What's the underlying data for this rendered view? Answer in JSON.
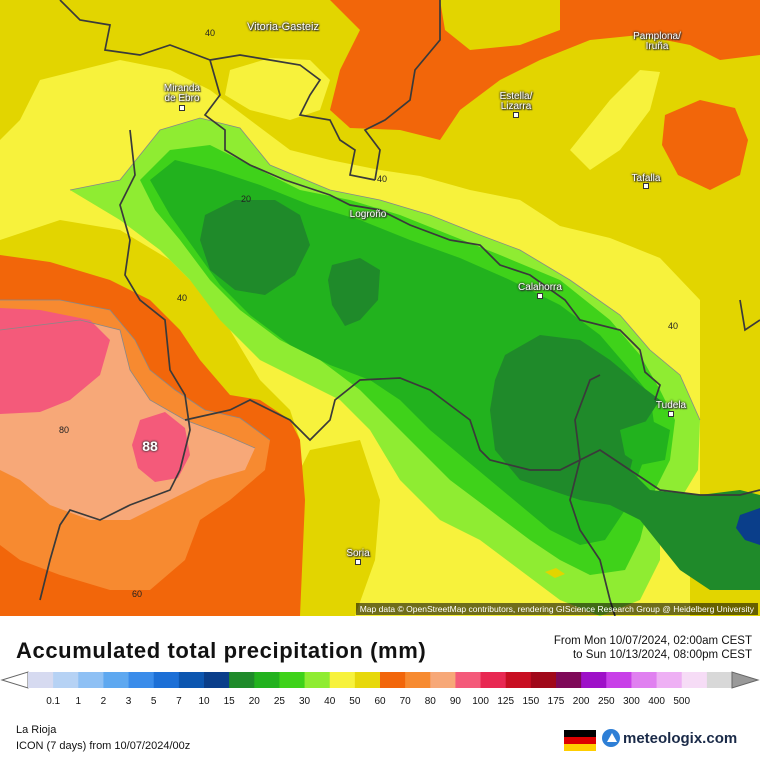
{
  "map": {
    "cities": [
      {
        "id": "vitoria-gasteiz",
        "name": "Vitoria-Gasteiz"
      },
      {
        "id": "pamplona-iruna",
        "name": "Pamplona/\nIruña"
      },
      {
        "id": "miranda-de-ebro",
        "name": "Miranda\nde Ebro"
      },
      {
        "id": "estella-lizarra",
        "name": "Estella/\nLizarra"
      },
      {
        "id": "tafalla",
        "name": "Tafalla"
      },
      {
        "id": "logrono",
        "name": "Logroño"
      },
      {
        "id": "calahorra",
        "name": "Calahorra"
      },
      {
        "id": "tudela",
        "name": "Tudela"
      },
      {
        "id": "soria",
        "name": "Soria"
      }
    ],
    "contour_labels": [
      "40",
      "40",
      "20",
      "40",
      "40",
      "80",
      "60"
    ],
    "max_value": "88",
    "attribution": "Map data © OpenStreetMap contributors, rendering GIScience Research Group @ Heidelberg University"
  },
  "footer": {
    "title": "Accumulated total precipitation (mm)",
    "period_from": "From Mon 10/07/2024, 02:00am CEST",
    "period_to": "to Sun 10/13/2024, 08:00pm CEST",
    "region": "La Rioja",
    "model": "ICON (7 days) from 10/07/2024/00z",
    "brand": "meteologix.com"
  },
  "legend": {
    "ticks": [
      "0.1",
      "1",
      "2",
      "3",
      "5",
      "7",
      "10",
      "15",
      "20",
      "25",
      "30",
      "40",
      "50",
      "60",
      "70",
      "80",
      "90",
      "100",
      "125",
      "150",
      "175",
      "200",
      "250",
      "300",
      "400",
      "500"
    ],
    "colors": [
      "#d6daf0",
      "#b6d2f4",
      "#8ec0f4",
      "#5ea8f0",
      "#3a8cea",
      "#1c6fd6",
      "#0c56b0",
      "#0a3e8a",
      "#1f8a2a",
      "#22b21e",
      "#3fd21a",
      "#8fec32",
      "#f7f23c",
      "#e7d80a",
      "#f2660a",
      "#f78a30",
      "#f7a878",
      "#f45a7a",
      "#e82852",
      "#c80e22",
      "#a0081a",
      "#7e0858",
      "#9e10c8",
      "#c840e8",
      "#e080f0",
      "#eeb0f4",
      "#f6dcf6",
      "#d8d8d8"
    ],
    "colors_note": "color swatches between ticks"
  }
}
